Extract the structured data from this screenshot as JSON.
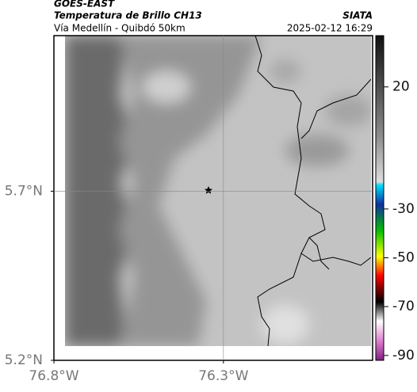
{
  "header": {
    "title": "GOES-EAST",
    "subtitle": "Temperatura de Brillo CH13",
    "source": "SIATA",
    "region": "Vía Medellín - Quibdó 50km",
    "timestamp": "2025-02-12 16:29"
  },
  "map": {
    "xlim": [
      -76.8,
      -75.86
    ],
    "ylim": [
      5.2,
      6.16
    ],
    "xticks": [
      {
        "value": -76.8,
        "label": "76.8°W"
      },
      {
        "value": -76.3,
        "label": "76.3°W"
      }
    ],
    "yticks": [
      {
        "value": 5.7,
        "label": "5.7°N"
      },
      {
        "value": 5.2,
        "label": "5.2°N"
      }
    ],
    "grid": true
  },
  "colorbar": {
    "lim": [
      -92,
      41
    ],
    "ticks": [
      20,
      -30,
      -50,
      -70,
      -90
    ]
  }
}
